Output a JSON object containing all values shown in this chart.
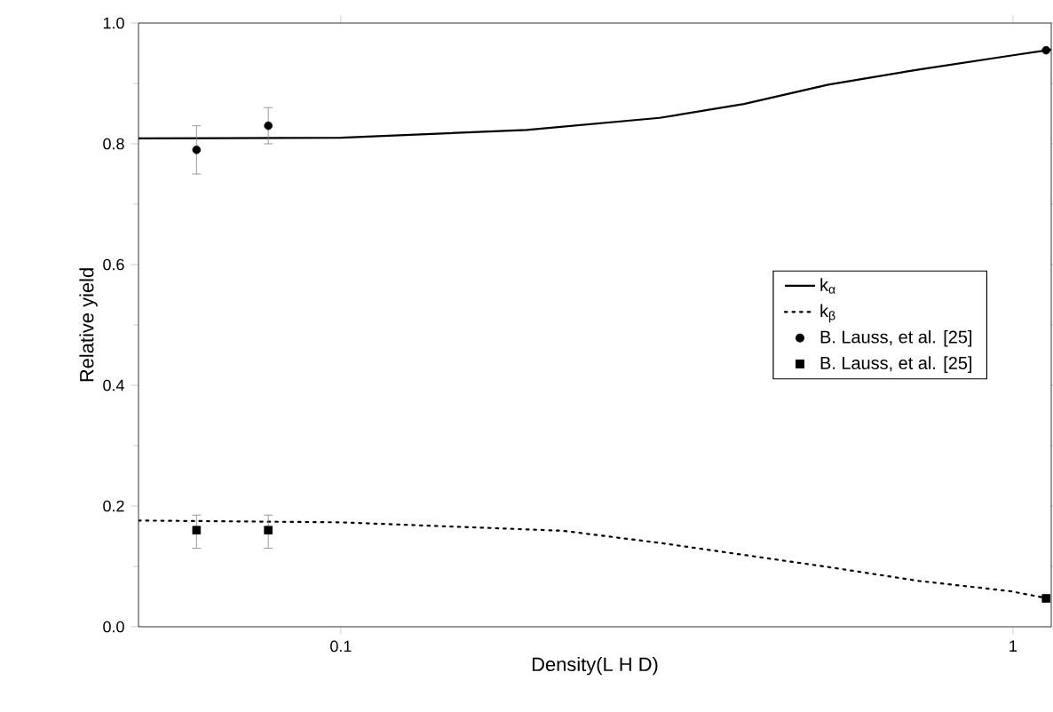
{
  "chart_data": {
    "type": "line",
    "xlabel": "Density(L H D)",
    "ylabel": "Relative yield",
    "log": "x",
    "legend": "right",
    "xlim": [
      0.05,
      1.14
    ],
    "ylim": [
      0,
      1.0
    ],
    "xticks": [
      0.1,
      1
    ],
    "yticks": [
      {
        "value": 0,
        "label": "0.0"
      },
      {
        "value": 0.2,
        "label": "0.2"
      },
      {
        "value": 0.4,
        "label": "0.4"
      },
      {
        "value": 0.6,
        "label": "0.6"
      },
      {
        "value": 0.8,
        "label": "0.8"
      },
      {
        "value": 1.0,
        "label": "1.0"
      }
    ],
    "series": [
      {
        "name": "k$_{α}$",
        "line_style": "solid",
        "color": "#000000",
        "x": [
          0.05,
          0.1,
          0.189,
          0.298,
          0.398,
          0.531,
          0.724,
          0.99,
          1.14
        ],
        "values": [
          0.809,
          0.81,
          0.823,
          0.843,
          0.866,
          0.898,
          0.923,
          0.946,
          0.956
        ]
      },
      {
        "name": "k$_{β}$",
        "line_style": "dotted",
        "color": "#000000",
        "x": [
          0.05,
          0.1,
          0.214,
          0.298,
          0.398,
          0.531,
          0.724,
          0.99,
          1.14
        ],
        "values": [
          0.176,
          0.173,
          0.159,
          0.139,
          0.119,
          0.099,
          0.076,
          0.059,
          0.046
        ]
      },
      {
        "name": "B. Lauss, et al. [25]",
        "type": "scatter",
        "marker": "circle",
        "color": "#000000",
        "x": [
          0.061,
          0.078,
          1.12
        ],
        "values": [
          0.79,
          0.83,
          0.955
        ],
        "errors": [
          [
            0.75,
            0.83
          ],
          [
            0.8,
            0.86
          ],
          null
        ]
      },
      {
        "name": "B. Lauss, et al. [25]",
        "type": "scatter",
        "marker": "square",
        "color": "#000000",
        "x": [
          0.061,
          0.078,
          1.12
        ],
        "values": [
          0.16,
          0.16,
          0.047
        ],
        "errors": [
          [
            0.13,
            0.185
          ],
          [
            0.13,
            0.185
          ],
          null
        ]
      }
    ]
  }
}
